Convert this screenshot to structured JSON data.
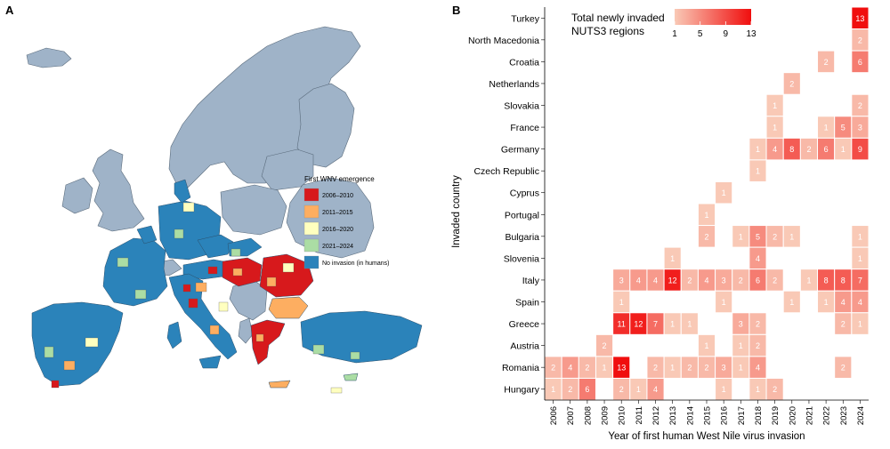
{
  "panel_a": {
    "label": "A",
    "legend": {
      "title": "First WNV emergence",
      "items": [
        {
          "label": "2006–2010",
          "color": "#d7191c"
        },
        {
          "label": "2011–2015",
          "color": "#fdae61"
        },
        {
          "label": "2016–2020",
          "color": "#ffffbf"
        },
        {
          "label": "2021–2024",
          "color": "#abdda4"
        },
        {
          "label": "No invasion (in humans)",
          "color": "#2b83ba"
        }
      ]
    },
    "colors": {
      "non_study": "#9fb3c8",
      "ocean": "#ffffff",
      "border": "#666666"
    }
  },
  "panel_b": {
    "label": "B",
    "chart_data": {
      "type": "heatmap",
      "xlabel": "Year of first human West Nile virus invasion",
      "ylabel": "Invaded country",
      "legend_title_lines": [
        "Total newly invaded",
        "NUTS3 regions"
      ],
      "legend_ticks": [
        1,
        5,
        9,
        13
      ],
      "value_range": [
        1,
        13
      ],
      "color_low": "#f9c9b6",
      "color_high": "#f00e0e",
      "years": [
        2006,
        2007,
        2008,
        2009,
        2010,
        2011,
        2012,
        2013,
        2014,
        2015,
        2016,
        2017,
        2018,
        2019,
        2020,
        2021,
        2022,
        2023,
        2024
      ],
      "countries": [
        "Turkey",
        "North Macedonia",
        "Croatia",
        "Netherlands",
        "Slovakia",
        "France",
        "Germany",
        "Czech Republic",
        "Cyprus",
        "Portugal",
        "Bulgaria",
        "Slovenia",
        "Italy",
        "Spain",
        "Greece",
        "Austria",
        "Romania",
        "Hungary"
      ],
      "cells": [
        [
          "Turkey",
          2024,
          13
        ],
        [
          "North Macedonia",
          2024,
          2
        ],
        [
          "Croatia",
          2022,
          2
        ],
        [
          "Croatia",
          2024,
          6
        ],
        [
          "Netherlands",
          2020,
          2
        ],
        [
          "Slovakia",
          2019,
          1
        ],
        [
          "Slovakia",
          2024,
          2
        ],
        [
          "France",
          2019,
          1
        ],
        [
          "France",
          2022,
          1
        ],
        [
          "France",
          2023,
          5
        ],
        [
          "France",
          2024,
          3
        ],
        [
          "Germany",
          2018,
          1
        ],
        [
          "Germany",
          2019,
          4
        ],
        [
          "Germany",
          2020,
          8
        ],
        [
          "Germany",
          2021,
          2
        ],
        [
          "Germany",
          2022,
          6
        ],
        [
          "Germany",
          2023,
          1
        ],
        [
          "Germany",
          2024,
          9
        ],
        [
          "Czech Republic",
          2018,
          1
        ],
        [
          "Cyprus",
          2016,
          1
        ],
        [
          "Portugal",
          2015,
          1
        ],
        [
          "Bulgaria",
          2015,
          2
        ],
        [
          "Bulgaria",
          2017,
          1
        ],
        [
          "Bulgaria",
          2018,
          5
        ],
        [
          "Bulgaria",
          2019,
          2
        ],
        [
          "Bulgaria",
          2020,
          1
        ],
        [
          "Bulgaria",
          2024,
          1
        ],
        [
          "Slovenia",
          2013,
          1
        ],
        [
          "Slovenia",
          2018,
          4
        ],
        [
          "Slovenia",
          2024,
          1
        ],
        [
          "Italy",
          2010,
          3
        ],
        [
          "Italy",
          2011,
          4
        ],
        [
          "Italy",
          2012,
          4
        ],
        [
          "Italy",
          2013,
          12
        ],
        [
          "Italy",
          2014,
          2
        ],
        [
          "Italy",
          2015,
          4
        ],
        [
          "Italy",
          2016,
          3
        ],
        [
          "Italy",
          2017,
          2
        ],
        [
          "Italy",
          2018,
          6
        ],
        [
          "Italy",
          2019,
          2
        ],
        [
          "Italy",
          2021,
          1
        ],
        [
          "Italy",
          2022,
          8
        ],
        [
          "Italy",
          2023,
          8
        ],
        [
          "Italy",
          2024,
          7
        ],
        [
          "Spain",
          2010,
          1
        ],
        [
          "Spain",
          2016,
          1
        ],
        [
          "Spain",
          2020,
          1
        ],
        [
          "Spain",
          2022,
          1
        ],
        [
          "Spain",
          2023,
          4
        ],
        [
          "Spain",
          2024,
          4
        ],
        [
          "Greece",
          2010,
          11
        ],
        [
          "Greece",
          2011,
          12
        ],
        [
          "Greece",
          2012,
          7
        ],
        [
          "Greece",
          2013,
          1
        ],
        [
          "Greece",
          2014,
          1
        ],
        [
          "Greece",
          2017,
          3
        ],
        [
          "Greece",
          2018,
          2
        ],
        [
          "Greece",
          2023,
          2
        ],
        [
          "Greece",
          2024,
          1
        ],
        [
          "Austria",
          2009,
          2
        ],
        [
          "Austria",
          2015,
          1
        ],
        [
          "Austria",
          2017,
          1
        ],
        [
          "Austria",
          2018,
          2
        ],
        [
          "Romania",
          2006,
          2
        ],
        [
          "Romania",
          2007,
          4
        ],
        [
          "Romania",
          2008,
          2
        ],
        [
          "Romania",
          2009,
          1
        ],
        [
          "Romania",
          2010,
          13
        ],
        [
          "Romania",
          2012,
          2
        ],
        [
          "Romania",
          2013,
          1
        ],
        [
          "Romania",
          2014,
          2
        ],
        [
          "Romania",
          2015,
          2
        ],
        [
          "Romania",
          2016,
          3
        ],
        [
          "Romania",
          2017,
          1
        ],
        [
          "Romania",
          2018,
          4
        ],
        [
          "Romania",
          2023,
          2
        ],
        [
          "Hungary",
          2006,
          1
        ],
        [
          "Hungary",
          2007,
          2
        ],
        [
          "Hungary",
          2008,
          6
        ],
        [
          "Hungary",
          2010,
          2
        ],
        [
          "Hungary",
          2011,
          1
        ],
        [
          "Hungary",
          2012,
          4
        ],
        [
          "Hungary",
          2016,
          1
        ],
        [
          "Hungary",
          2018,
          1
        ],
        [
          "Hungary",
          2019,
          2
        ]
      ]
    }
  }
}
